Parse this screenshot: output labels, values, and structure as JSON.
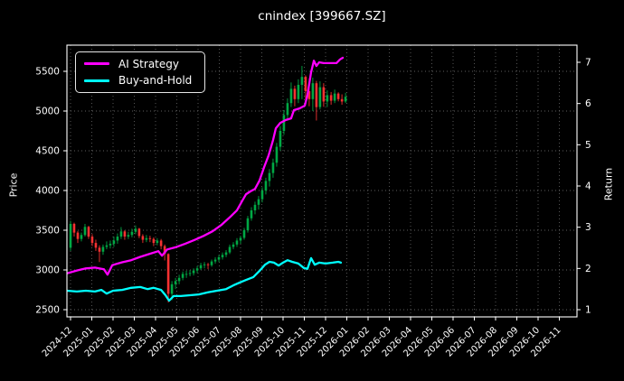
{
  "title": "cnindex [399667.SZ]",
  "legend": {
    "items": [
      {
        "label": "AI Strategy",
        "color": "#ff00ff"
      },
      {
        "label": "Buy-and-Hold",
        "color": "#00ffff"
      }
    ]
  },
  "axes": {
    "left_label": "Price",
    "right_label": "Return",
    "price_ticks": [
      2500,
      3000,
      3500,
      4000,
      4500,
      5000,
      5500
    ],
    "return_ticks": [
      1,
      2,
      3,
      4,
      5,
      6,
      7
    ],
    "x_tick_labels": [
      "2024-12",
      "2025-01",
      "2025-02",
      "2025-03",
      "2025-04",
      "2025-05",
      "2025-06",
      "2025-07",
      "2025-08",
      "2025-09",
      "2025-10",
      "2025-11",
      "2025-12",
      "2026-01",
      "2026-02",
      "2026-03",
      "2026-04",
      "2026-05",
      "2026-06",
      "2026-07",
      "2026-08",
      "2026-09",
      "2026-10",
      "2026-11"
    ],
    "grid": true
  },
  "chart_data": {
    "type": "candlestick+line",
    "title": "cnindex [399667.SZ]",
    "x_unit": "months offset from 2024-12",
    "price_ylim": [
      2409,
      5830
    ],
    "return_ylim": [
      0.82,
      7.42
    ],
    "colors": {
      "up": "#00a844",
      "down": "#f53131",
      "grid": "#6f6f6f",
      "frame": "#ffffff",
      "text": "#ffffff",
      "background": "#000000"
    },
    "series": [
      {
        "name": "AI Strategy",
        "axis": "return",
        "color": "#ff00ff",
        "points": [
          [
            -0.17,
            1.88
          ],
          [
            0.3,
            1.95
          ],
          [
            0.72,
            2.0
          ],
          [
            1.15,
            2.02
          ],
          [
            1.57,
            1.98
          ],
          [
            1.74,
            1.85
          ],
          [
            1.96,
            2.08
          ],
          [
            2.43,
            2.15
          ],
          [
            2.85,
            2.2
          ],
          [
            3.28,
            2.28
          ],
          [
            3.7,
            2.35
          ],
          [
            4.13,
            2.42
          ],
          [
            4.3,
            2.31
          ],
          [
            4.55,
            2.46
          ],
          [
            4.98,
            2.52
          ],
          [
            5.4,
            2.6
          ],
          [
            5.83,
            2.69
          ],
          [
            6.26,
            2.79
          ],
          [
            6.68,
            2.9
          ],
          [
            7.11,
            3.06
          ],
          [
            7.53,
            3.26
          ],
          [
            7.83,
            3.41
          ],
          [
            8.09,
            3.65
          ],
          [
            8.26,
            3.8
          ],
          [
            8.47,
            3.87
          ],
          [
            8.68,
            3.93
          ],
          [
            8.89,
            4.13
          ],
          [
            9.11,
            4.46
          ],
          [
            9.32,
            4.74
          ],
          [
            9.53,
            5.12
          ],
          [
            9.66,
            5.4
          ],
          [
            9.87,
            5.53
          ],
          [
            10.13,
            5.6
          ],
          [
            10.38,
            5.64
          ],
          [
            10.51,
            5.84
          ],
          [
            10.77,
            5.88
          ],
          [
            11.02,
            5.95
          ],
          [
            11.15,
            6.21
          ],
          [
            11.32,
            6.76
          ],
          [
            11.45,
            7.04
          ],
          [
            11.57,
            6.91
          ],
          [
            11.7,
            7.0
          ],
          [
            11.91,
            6.98
          ],
          [
            12.21,
            6.98
          ],
          [
            12.51,
            6.98
          ],
          [
            12.68,
            7.07
          ],
          [
            12.81,
            7.11
          ]
        ]
      },
      {
        "name": "Buy-and-Hold",
        "axis": "return",
        "color": "#00ffff",
        "points": [
          [
            -0.17,
            1.46
          ],
          [
            0.3,
            1.44
          ],
          [
            0.72,
            1.46
          ],
          [
            1.15,
            1.44
          ],
          [
            1.45,
            1.48
          ],
          [
            1.7,
            1.39
          ],
          [
            2.0,
            1.46
          ],
          [
            2.43,
            1.48
          ],
          [
            2.85,
            1.53
          ],
          [
            3.28,
            1.55
          ],
          [
            3.62,
            1.5
          ],
          [
            3.91,
            1.53
          ],
          [
            4.26,
            1.48
          ],
          [
            4.47,
            1.35
          ],
          [
            4.64,
            1.22
          ],
          [
            4.85,
            1.33
          ],
          [
            5.19,
            1.33
          ],
          [
            5.62,
            1.35
          ],
          [
            6.04,
            1.37
          ],
          [
            6.47,
            1.42
          ],
          [
            6.89,
            1.46
          ],
          [
            7.32,
            1.5
          ],
          [
            7.66,
            1.59
          ],
          [
            7.96,
            1.66
          ],
          [
            8.26,
            1.72
          ],
          [
            8.6,
            1.79
          ],
          [
            8.89,
            1.94
          ],
          [
            9.15,
            2.09
          ],
          [
            9.36,
            2.16
          ],
          [
            9.57,
            2.14
          ],
          [
            9.79,
            2.07
          ],
          [
            10.0,
            2.14
          ],
          [
            10.21,
            2.2
          ],
          [
            10.43,
            2.16
          ],
          [
            10.72,
            2.12
          ],
          [
            10.98,
            2.01
          ],
          [
            11.15,
            1.99
          ],
          [
            11.32,
            2.25
          ],
          [
            11.49,
            2.09
          ],
          [
            11.7,
            2.14
          ],
          [
            12.0,
            2.12
          ],
          [
            12.34,
            2.14
          ],
          [
            12.6,
            2.16
          ],
          [
            12.72,
            2.14
          ]
        ]
      }
    ],
    "candles_format": [
      "x_month_offset",
      "open",
      "high",
      "low",
      "close"
    ],
    "candles": [
      [
        0,
        3280,
        3620,
        3240,
        3580
      ],
      [
        0.17,
        3580,
        3595,
        3420,
        3470
      ],
      [
        0.34,
        3470,
        3490,
        3340,
        3390
      ],
      [
        0.51,
        3390,
        3470,
        3360,
        3440
      ],
      [
        0.68,
        3440,
        3580,
        3420,
        3542
      ],
      [
        0.85,
        3542,
        3555,
        3390,
        3420
      ],
      [
        1.02,
        3420,
        3450,
        3300,
        3340
      ],
      [
        1.19,
        3340,
        3380,
        3240,
        3280
      ],
      [
        1.36,
        3280,
        3310,
        3100,
        3230
      ],
      [
        1.53,
        3230,
        3320,
        3190,
        3290
      ],
      [
        1.7,
        3290,
        3360,
        3260,
        3310
      ],
      [
        1.87,
        3310,
        3370,
        3270,
        3330
      ],
      [
        2.04,
        3330,
        3420,
        3290,
        3370
      ],
      [
        2.21,
        3370,
        3460,
        3330,
        3420
      ],
      [
        2.38,
        3420,
        3540,
        3390,
        3485
      ],
      [
        2.55,
        3485,
        3500,
        3380,
        3420
      ],
      [
        2.72,
        3420,
        3480,
        3390,
        3440
      ],
      [
        2.89,
        3440,
        3520,
        3410,
        3480
      ],
      [
        3.06,
        3480,
        3560,
        3450,
        3519
      ],
      [
        3.23,
        3519,
        3530,
        3400,
        3427
      ],
      [
        3.4,
        3427,
        3450,
        3340,
        3380
      ],
      [
        3.57,
        3380,
        3440,
        3350,
        3400
      ],
      [
        3.74,
        3400,
        3430,
        3350,
        3390
      ],
      [
        3.91,
        3390,
        3410,
        3300,
        3340
      ],
      [
        4.08,
        3340,
        3400,
        3310,
        3370
      ],
      [
        4.26,
        3370,
        3390,
        3260,
        3300
      ],
      [
        4.43,
        3300,
        3320,
        3120,
        3200
      ],
      [
        4.6,
        3200,
        3210,
        2590,
        2700
      ],
      [
        4.77,
        2700,
        2860,
        2620,
        2820
      ],
      [
        4.94,
        2820,
        2900,
        2760,
        2860
      ],
      [
        5.11,
        2860,
        2940,
        2820,
        2900
      ],
      [
        5.28,
        2900,
        2980,
        2870,
        2950
      ],
      [
        5.45,
        2950,
        2990,
        2900,
        2950
      ],
      [
        5.62,
        2950,
        3000,
        2920,
        2960
      ],
      [
        5.79,
        2960,
        3020,
        2930,
        2992
      ],
      [
        5.96,
        2992,
        3050,
        2960,
        3020
      ],
      [
        6.13,
        3020,
        3090,
        3000,
        3060
      ],
      [
        6.3,
        3060,
        3100,
        3020,
        3070
      ],
      [
        6.47,
        3070,
        3090,
        3010,
        3060
      ],
      [
        6.64,
        3060,
        3130,
        3040,
        3107
      ],
      [
        6.81,
        3107,
        3160,
        3080,
        3130
      ],
      [
        6.98,
        3130,
        3190,
        3100,
        3160
      ],
      [
        7.15,
        3160,
        3220,
        3130,
        3190
      ],
      [
        7.32,
        3190,
        3250,
        3160,
        3221
      ],
      [
        7.49,
        3221,
        3320,
        3200,
        3290
      ],
      [
        7.66,
        3290,
        3350,
        3260,
        3320
      ],
      [
        7.83,
        3320,
        3400,
        3290,
        3370
      ],
      [
        8.0,
        3370,
        3430,
        3330,
        3404
      ],
      [
        8.17,
        3404,
        3530,
        3380,
        3500
      ],
      [
        8.34,
        3500,
        3680,
        3470,
        3650
      ],
      [
        8.51,
        3650,
        3790,
        3620,
        3750
      ],
      [
        8.68,
        3750,
        3860,
        3700,
        3820
      ],
      [
        8.85,
        3820,
        3930,
        3760,
        3890
      ],
      [
        9.02,
        3890,
        4040,
        3850,
        4000
      ],
      [
        9.19,
        4000,
        4160,
        3950,
        4120
      ],
      [
        9.36,
        4120,
        4270,
        4050,
        4220
      ],
      [
        9.53,
        4220,
        4400,
        4160,
        4350
      ],
      [
        9.7,
        4350,
        4600,
        4300,
        4550
      ],
      [
        9.87,
        4550,
        4810,
        4500,
        4750
      ],
      [
        10.04,
        4750,
        5010,
        4700,
        4950
      ],
      [
        10.21,
        4950,
        5160,
        4880,
        5100
      ],
      [
        10.38,
        5100,
        5360,
        5050,
        5280
      ],
      [
        10.55,
        5280,
        5320,
        5060,
        5150
      ],
      [
        10.72,
        5150,
        5400,
        5100,
        5330
      ],
      [
        10.89,
        5330,
        5568,
        5150,
        5430
      ],
      [
        11.06,
        5430,
        5450,
        5150,
        5250
      ],
      [
        11.23,
        5250,
        5410,
        5060,
        5150
      ],
      [
        11.4,
        5150,
        5420,
        5000,
        5350
      ],
      [
        11.57,
        5350,
        5380,
        4881,
        5050
      ],
      [
        11.74,
        5050,
        5374,
        5020,
        5300
      ],
      [
        11.91,
        5300,
        5351,
        5053,
        5120
      ],
      [
        12.08,
        5120,
        5260,
        5050,
        5200
      ],
      [
        12.26,
        5200,
        5240,
        5080,
        5130
      ],
      [
        12.43,
        5130,
        5270,
        5100,
        5220
      ],
      [
        12.6,
        5220,
        5236,
        5122,
        5150
      ],
      [
        12.77,
        5150,
        5210,
        5080,
        5120
      ],
      [
        12.94,
        5120,
        5230,
        5100,
        5180
      ]
    ]
  }
}
